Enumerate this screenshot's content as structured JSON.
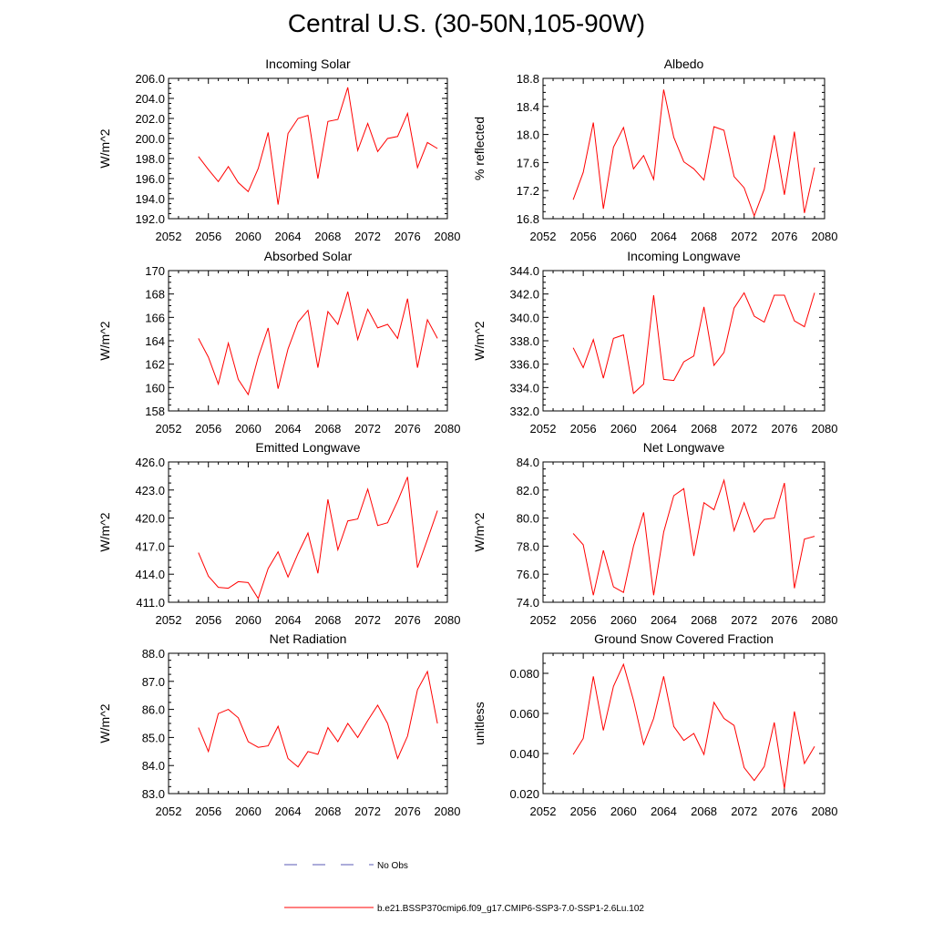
{
  "page": {
    "title": "Central U.S. (30-50N,105-90W)"
  },
  "legend": {
    "obs_label": "No Obs",
    "obs_color": "#5a5ab4",
    "model_label": "b.e21.BSSP370cmip6.f09_g17.CMIP6-SSP3-7.0-SSP1-2.6Lu.102",
    "model_color": "#ff0000"
  },
  "chart_data": [
    {
      "type": "line",
      "title": "Incoming Solar",
      "ylabel": "W/m^2",
      "xlim": [
        2052,
        2080
      ],
      "xticks": [
        2052,
        2056,
        2060,
        2064,
        2068,
        2072,
        2076,
        2080
      ],
      "ylim": [
        192.0,
        206.0
      ],
      "yticks": [
        "192.0",
        "194.0",
        "196.0",
        "198.0",
        "200.0",
        "202.0",
        "204.0",
        "206.0"
      ],
      "x": [
        2055,
        2056,
        2057,
        2058,
        2059,
        2060,
        2061,
        2062,
        2063,
        2064,
        2065,
        2066,
        2067,
        2068,
        2069,
        2070,
        2071,
        2072,
        2073,
        2074,
        2075,
        2076,
        2077,
        2078,
        2079
      ],
      "y": [
        198.2,
        196.9,
        195.7,
        197.2,
        195.6,
        194.7,
        197.0,
        200.6,
        193.4,
        200.5,
        202.0,
        202.3,
        196.0,
        201.7,
        201.9,
        205.1,
        198.8,
        201.5,
        198.7,
        200.0,
        200.2,
        202.5,
        197.1,
        199.6,
        199.0
      ]
    },
    {
      "type": "line",
      "title": "Albedo",
      "ylabel": "% reflected",
      "xlim": [
        2052,
        2080
      ],
      "xticks": [
        2052,
        2056,
        2060,
        2064,
        2068,
        2072,
        2076,
        2080
      ],
      "ylim": [
        16.8,
        18.8
      ],
      "yticks": [
        "16.8",
        "17.2",
        "17.6",
        "18.0",
        "18.4",
        "18.8"
      ],
      "x": [
        2055,
        2056,
        2057,
        2058,
        2059,
        2060,
        2061,
        2062,
        2063,
        2064,
        2065,
        2066,
        2067,
        2068,
        2069,
        2070,
        2071,
        2072,
        2073,
        2074,
        2075,
        2076,
        2077,
        2078,
        2079
      ],
      "y": [
        17.07,
        17.46,
        18.17,
        16.94,
        17.82,
        18.1,
        17.51,
        17.7,
        17.36,
        18.64,
        17.96,
        17.61,
        17.51,
        17.35,
        18.11,
        18.06,
        17.4,
        17.24,
        16.84,
        17.22,
        17.99,
        17.14,
        18.04,
        16.88,
        17.53
      ]
    },
    {
      "type": "line",
      "title": "Absorbed Solar",
      "ylabel": "W/m^2",
      "xlim": [
        2052,
        2080
      ],
      "xticks": [
        2052,
        2056,
        2060,
        2064,
        2068,
        2072,
        2076,
        2080
      ],
      "ylim": [
        158,
        170
      ],
      "yticks": [
        "158",
        "160",
        "162",
        "164",
        "166",
        "168",
        "170"
      ],
      "x": [
        2055,
        2056,
        2057,
        2058,
        2059,
        2060,
        2061,
        2062,
        2063,
        2064,
        2065,
        2066,
        2067,
        2068,
        2069,
        2070,
        2071,
        2072,
        2073,
        2074,
        2075,
        2076,
        2077,
        2078,
        2079
      ],
      "y": [
        164.2,
        162.6,
        160.3,
        163.8,
        160.7,
        159.4,
        162.6,
        165.1,
        159.9,
        163.3,
        165.6,
        166.6,
        161.7,
        166.5,
        165.4,
        168.2,
        164.1,
        166.7,
        165.1,
        165.4,
        164.2,
        167.6,
        161.7,
        165.8,
        164.2
      ]
    },
    {
      "type": "line",
      "title": "Incoming Longwave",
      "ylabel": "W/m^2",
      "xlim": [
        2052,
        2080
      ],
      "xticks": [
        2052,
        2056,
        2060,
        2064,
        2068,
        2072,
        2076,
        2080
      ],
      "ylim": [
        332.0,
        344.0
      ],
      "yticks": [
        "332.0",
        "334.0",
        "336.0",
        "338.0",
        "340.0",
        "342.0",
        "344.0"
      ],
      "x": [
        2055,
        2056,
        2057,
        2058,
        2059,
        2060,
        2061,
        2062,
        2063,
        2064,
        2065,
        2066,
        2067,
        2068,
        2069,
        2070,
        2071,
        2072,
        2073,
        2074,
        2075,
        2076,
        2077,
        2078,
        2079
      ],
      "y": [
        337.4,
        335.7,
        338.1,
        334.8,
        338.2,
        338.5,
        333.5,
        334.3,
        341.9,
        334.7,
        334.6,
        336.2,
        336.7,
        340.9,
        335.9,
        337.0,
        340.8,
        342.1,
        340.1,
        339.6,
        341.9,
        341.9,
        339.7,
        339.2,
        342.1
      ]
    },
    {
      "type": "line",
      "title": "Emitted Longwave",
      "ylabel": "W/m^2",
      "xlim": [
        2052,
        2080
      ],
      "xticks": [
        2052,
        2056,
        2060,
        2064,
        2068,
        2072,
        2076,
        2080
      ],
      "ylim": [
        411.0,
        426.0
      ],
      "yticks": [
        "411.0",
        "414.0",
        "417.0",
        "420.0",
        "423.0",
        "426.0"
      ],
      "x": [
        2055,
        2056,
        2057,
        2058,
        2059,
        2060,
        2061,
        2062,
        2063,
        2064,
        2065,
        2066,
        2067,
        2068,
        2069,
        2070,
        2071,
        2072,
        2073,
        2074,
        2075,
        2076,
        2077,
        2078,
        2079
      ],
      "y": [
        416.3,
        413.8,
        412.6,
        412.5,
        413.2,
        413.1,
        411.4,
        414.6,
        416.4,
        413.7,
        416.2,
        418.4,
        414.1,
        422.0,
        416.6,
        419.7,
        419.9,
        423.1,
        419.2,
        419.5,
        421.8,
        424.4,
        414.7,
        417.7,
        420.8
      ]
    },
    {
      "type": "line",
      "title": "Net Longwave",
      "ylabel": "W/m^2",
      "xlim": [
        2052,
        2080
      ],
      "xticks": [
        2052,
        2056,
        2060,
        2064,
        2068,
        2072,
        2076,
        2080
      ],
      "ylim": [
        74.0,
        84.0
      ],
      "yticks": [
        "74.0",
        "76.0",
        "78.0",
        "80.0",
        "82.0",
        "84.0"
      ],
      "x": [
        2055,
        2056,
        2057,
        2058,
        2059,
        2060,
        2061,
        2062,
        2063,
        2064,
        2065,
        2066,
        2067,
        2068,
        2069,
        2070,
        2071,
        2072,
        2073,
        2074,
        2075,
        2076,
        2077,
        2078,
        2079
      ],
      "y": [
        78.9,
        78.1,
        74.5,
        77.7,
        75.1,
        74.7,
        78.0,
        80.4,
        74.5,
        79.0,
        81.6,
        82.1,
        77.3,
        81.1,
        80.6,
        82.7,
        79.1,
        81.1,
        79.0,
        79.9,
        80.0,
        82.5,
        75.0,
        78.5,
        78.7
      ]
    },
    {
      "type": "line",
      "title": "Net Radiation",
      "ylabel": "W/m^2",
      "xlim": [
        2052,
        2080
      ],
      "xticks": [
        2052,
        2056,
        2060,
        2064,
        2068,
        2072,
        2076,
        2080
      ],
      "ylim": [
        83.0,
        88.0
      ],
      "yticks": [
        "83.0",
        "84.0",
        "85.0",
        "86.0",
        "87.0",
        "88.0"
      ],
      "x": [
        2055,
        2056,
        2057,
        2058,
        2059,
        2060,
        2061,
        2062,
        2063,
        2064,
        2065,
        2066,
        2067,
        2068,
        2069,
        2070,
        2071,
        2072,
        2073,
        2074,
        2075,
        2076,
        2077,
        2078,
        2079
      ],
      "y": [
        85.35,
        84.5,
        85.85,
        86.0,
        85.7,
        84.85,
        84.65,
        84.7,
        85.4,
        84.25,
        83.95,
        84.5,
        84.4,
        85.35,
        84.85,
        85.5,
        85.0,
        85.6,
        86.15,
        85.5,
        84.25,
        85.05,
        86.7,
        87.35,
        85.5
      ]
    },
    {
      "type": "line",
      "title": "Ground Snow Covered Fraction",
      "ylabel": "unitless",
      "xlim": [
        2052,
        2080
      ],
      "xticks": [
        2052,
        2056,
        2060,
        2064,
        2068,
        2072,
        2076,
        2080
      ],
      "ylim": [
        0.02,
        0.09
      ],
      "yticks": [
        "0.020",
        "0.040",
        "0.060",
        "0.080"
      ],
      "x": [
        2055,
        2056,
        2057,
        2058,
        2059,
        2060,
        2061,
        2062,
        2063,
        2064,
        2065,
        2066,
        2067,
        2068,
        2069,
        2070,
        2071,
        2072,
        2073,
        2074,
        2075,
        2076,
        2077,
        2078,
        2079
      ],
      "y": [
        0.0395,
        0.0475,
        0.0785,
        0.0515,
        0.0735,
        0.0845,
        0.0665,
        0.0445,
        0.0575,
        0.0785,
        0.0535,
        0.0465,
        0.05,
        0.0395,
        0.0655,
        0.0575,
        0.054,
        0.033,
        0.0265,
        0.0335,
        0.0555,
        0.0225,
        0.061,
        0.035,
        0.0435
      ]
    }
  ]
}
